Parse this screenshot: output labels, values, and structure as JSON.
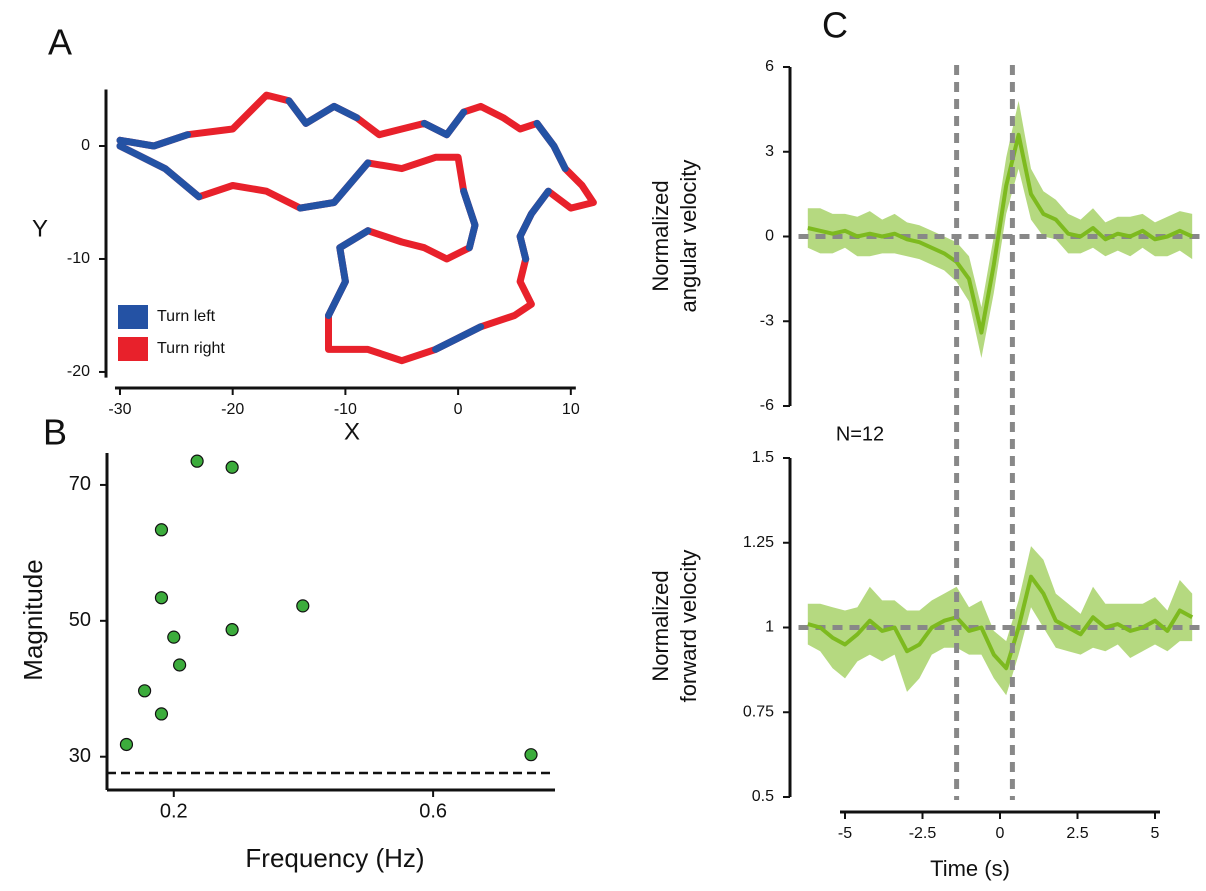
{
  "chart_data": [
    {
      "type": "trajectory",
      "panel": "A",
      "xlabel": "X",
      "ylabel": "Y",
      "xlim": [
        -31,
        12.5
      ],
      "ylim": [
        -20.5,
        5
      ],
      "xticks": [
        -30,
        -20,
        -10,
        0,
        10
      ],
      "yticks": [
        0,
        -10,
        -20
      ],
      "legend": "lower left",
      "series": [
        {
          "name": "Turn right",
          "color": "#e8212b",
          "x": [
            -30,
            -27,
            -24,
            -20,
            -17,
            -15,
            -13.5,
            -11,
            -9,
            -7,
            -5,
            -3,
            -1,
            0.5,
            2,
            4,
            5.5,
            7,
            8.5,
            9.5,
            11,
            12,
            10,
            8,
            6.5,
            5.5,
            6,
            5.5,
            6.5,
            5,
            2,
            0,
            -2,
            -5,
            -8,
            -11.5,
            -11.5,
            -10,
            -10.5,
            -8,
            -5,
            -3,
            -1,
            1,
            1.5,
            0.5,
            0,
            -2,
            -5,
            -8,
            -11,
            -14,
            -17,
            -20,
            -23,
            -26,
            -30
          ],
          "values": [
            0.5,
            0,
            1,
            1.5,
            4.5,
            4,
            2,
            3.5,
            2.5,
            1,
            1.5,
            2,
            1,
            3,
            3.5,
            2.5,
            1.5,
            2,
            0,
            -2,
            -3.5,
            -5,
            -5.5,
            -4,
            -6,
            -8,
            -10,
            -12,
            -14,
            -15,
            -16,
            -17,
            -18,
            -19,
            -18,
            -18,
            -15,
            -12,
            -9,
            -7.5,
            -8.5,
            -9,
            -10,
            -9,
            -7,
            -4,
            -1,
            -1,
            -2,
            -1.5,
            -5,
            -5.5,
            -4,
            -3.5,
            -4.5,
            -2,
            0
          ]
        },
        {
          "name": "Turn left",
          "color": "#2452a4",
          "x": [
            -30,
            -27,
            -24,
            null,
            null,
            -15,
            -13.5,
            -11,
            -9,
            null,
            null,
            -3,
            -1,
            0.5,
            null,
            null,
            null,
            7,
            8.5,
            9.5,
            null,
            null,
            null,
            8,
            6.5,
            5.5,
            6,
            null,
            null,
            null,
            2,
            0,
            -2,
            null,
            null,
            null,
            -11.5,
            -10,
            -10.5,
            -8,
            null,
            null,
            null,
            1,
            1.5,
            0.5,
            null,
            null,
            null,
            -8,
            -11,
            -14,
            null,
            null,
            -23,
            -26,
            -30
          ],
          "values": [
            0.5,
            0,
            1,
            null,
            null,
            4,
            2,
            3.5,
            2.5,
            null,
            null,
            2,
            1,
            3,
            null,
            null,
            null,
            2,
            0,
            -2,
            null,
            null,
            null,
            -4,
            -6,
            -8,
            -10,
            null,
            null,
            null,
            -16,
            -17,
            -18,
            null,
            null,
            null,
            -15,
            -12,
            -9,
            -7.5,
            null,
            null,
            null,
            -9,
            -7,
            -4,
            null,
            null,
            null,
            -1.5,
            -5,
            -5.5,
            null,
            null,
            -4.5,
            -2,
            0
          ]
        }
      ]
    },
    {
      "type": "scatter",
      "panel": "B",
      "xlabel": "Frequency (Hz)",
      "ylabel": "Magnitude",
      "xlim": [
        0.097,
        0.788
      ],
      "ylim": [
        25.1,
        74.7
      ],
      "xticks": [
        0.2,
        0.6
      ],
      "yticks": [
        30,
        50,
        70
      ],
      "hlines": [
        27.6
      ],
      "color": "#3cac3c",
      "x": [
        0.127,
        0.155,
        0.181,
        0.181,
        0.181,
        0.2,
        0.209,
        0.236,
        0.29,
        0.29,
        0.399,
        0.751
      ],
      "values": [
        31.8,
        39.7,
        36.3,
        53.4,
        63.4,
        47.6,
        43.5,
        73.5,
        72.6,
        48.7,
        52.2,
        30.3
      ]
    },
    {
      "type": "line",
      "panel": "C",
      "ylabel": [
        "Normalized",
        "angular velocity"
      ],
      "annotation": "N=12",
      "xlim": [
        -6.5,
        6.5
      ],
      "ylim": [
        -6,
        6
      ],
      "yticks": [
        -6,
        -3,
        0,
        3,
        6
      ],
      "hlines": [
        0
      ],
      "color": "#7dba1f",
      "band_color": "#a8d26a",
      "x": [
        -6.2,
        -5.8,
        -5.4,
        -5.0,
        -4.6,
        -4.2,
        -3.8,
        -3.4,
        -3.0,
        -2.6,
        -2.2,
        -1.8,
        -1.4,
        -1.0,
        -0.6,
        -0.2,
        0.2,
        0.6,
        1.0,
        1.4,
        1.8,
        2.2,
        2.6,
        3.0,
        3.4,
        3.8,
        4.2,
        4.6,
        5.0,
        5.4,
        5.8,
        6.2
      ],
      "values": [
        0.3,
        0.2,
        0.1,
        0.2,
        0.0,
        0.1,
        0.0,
        0.1,
        -0.1,
        -0.2,
        -0.4,
        -0.6,
        -0.9,
        -1.5,
        -3.4,
        -1.0,
        1.8,
        3.6,
        1.5,
        0.8,
        0.6,
        0.1,
        0.0,
        0.3,
        -0.1,
        0.1,
        0.0,
        0.2,
        -0.1,
        0.0,
        0.2,
        0.0
      ],
      "error": [
        0.7,
        0.8,
        0.7,
        0.6,
        0.7,
        0.8,
        0.6,
        0.7,
        0.6,
        0.6,
        0.6,
        0.6,
        0.7,
        0.8,
        0.9,
        1.0,
        1.0,
        1.2,
        0.9,
        0.8,
        0.7,
        0.7,
        0.6,
        0.7,
        0.6,
        0.6,
        0.7,
        0.6,
        0.6,
        0.7,
        0.7,
        0.8
      ]
    },
    {
      "type": "line",
      "ylabel": [
        "Normalized",
        "forward velocity"
      ],
      "xlabel": "Time (s)",
      "xlim": [
        -6.5,
        6.5
      ],
      "ylim": [
        0.5,
        1.5
      ],
      "xticks": [
        -5,
        -2.5,
        0,
        2.5,
        5
      ],
      "yticks": [
        0.5,
        0.75,
        1,
        1.25,
        1.5
      ],
      "hlines": [
        1
      ],
      "vlines": [
        -1.4,
        0.4
      ],
      "color": "#7dba1f",
      "band_color": "#a8d26a",
      "x": [
        -6.2,
        -5.8,
        -5.4,
        -5.0,
        -4.6,
        -4.2,
        -3.8,
        -3.4,
        -3.0,
        -2.6,
        -2.2,
        -1.8,
        -1.4,
        -1.0,
        -0.6,
        -0.2,
        0.2,
        0.6,
        1.0,
        1.4,
        1.8,
        2.2,
        2.6,
        3.0,
        3.4,
        3.8,
        4.2,
        4.6,
        5.0,
        5.4,
        5.8,
        6.2
      ],
      "values": [
        1.01,
        1.0,
        0.97,
        0.95,
        0.98,
        1.02,
        0.99,
        1.0,
        0.93,
        0.95,
        1.0,
        1.02,
        1.03,
        0.99,
        1.0,
        0.92,
        0.88,
        1.0,
        1.15,
        1.1,
        1.02,
        1.0,
        0.98,
        1.03,
        1.0,
        1.01,
        0.99,
        1.0,
        1.02,
        0.99,
        1.05,
        1.03
      ],
      "error": [
        0.06,
        0.07,
        0.09,
        0.1,
        0.08,
        0.1,
        0.09,
        0.08,
        0.12,
        0.1,
        0.08,
        0.08,
        0.09,
        0.07,
        0.08,
        0.07,
        0.08,
        0.08,
        0.09,
        0.1,
        0.08,
        0.07,
        0.06,
        0.09,
        0.07,
        0.06,
        0.08,
        0.07,
        0.07,
        0.06,
        0.09,
        0.07
      ]
    }
  ]
}
